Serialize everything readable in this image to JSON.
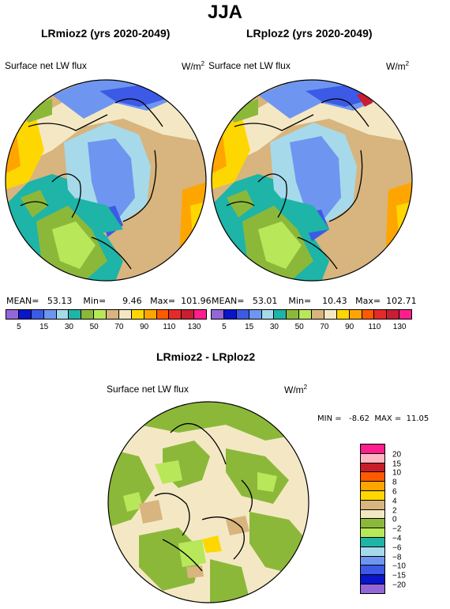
{
  "title": "JJA",
  "panels": {
    "left": {
      "title": "LRmioz2 (yrs 2020-2049)",
      "subtitle": "Surface net LW flux",
      "units": "W/m",
      "units_sup": "2",
      "mean_label": "MEAN=",
      "mean": "53.13",
      "min_label": "Min=",
      "min": "9.46",
      "max_label": "Max=",
      "max": "101.96"
    },
    "right": {
      "title": "LRploz2 (yrs 2020-2049)",
      "subtitle": "Surface net LW flux",
      "units": "W/m",
      "units_sup": "2",
      "mean_label": "MEAN=",
      "mean": "53.01",
      "min_label": "Min=",
      "min": "10.43",
      "max_label": "Max=",
      "max": "102.71"
    },
    "diff": {
      "title": "LRmioz2 - LRploz2",
      "subtitle": "Surface net LW flux",
      "units": "W/m",
      "units_sup": "2",
      "minmax": "MIN =   -8.62  MAX =  11.05"
    }
  },
  "top_legend": {
    "colors": [
      "#9467d8",
      "#0a14c8",
      "#3c5ae6",
      "#6e96f0",
      "#a6daea",
      "#1eb4a8",
      "#8cb83a",
      "#b8e85a",
      "#d8b47e",
      "#f4e8c4",
      "#ffd700",
      "#ffa500",
      "#ff5a00",
      "#e62a28",
      "#c81e32",
      "#ff1e8c"
    ],
    "tick_labels": [
      "5",
      "15",
      "30",
      "50",
      "70",
      "90",
      "110",
      "130"
    ]
  },
  "diff_legend": {
    "colors": [
      "#ff1e8c",
      "#ffb6c1",
      "#c81e28",
      "#ff5a00",
      "#ffa500",
      "#ffd700",
      "#d8b47e",
      "#f4e8c4",
      "#8cb83a",
      "#b8e85a",
      "#1eb4a8",
      "#a6daea",
      "#6e96f0",
      "#3c5ae6",
      "#0a14c8",
      "#9467d8"
    ],
    "tick_labels": [
      "20",
      "15",
      "10",
      "8",
      "6",
      "4",
      "2",
      "0",
      "−2",
      "−4",
      "−6",
      "−8",
      "−10",
      "−15",
      "−20"
    ]
  }
}
